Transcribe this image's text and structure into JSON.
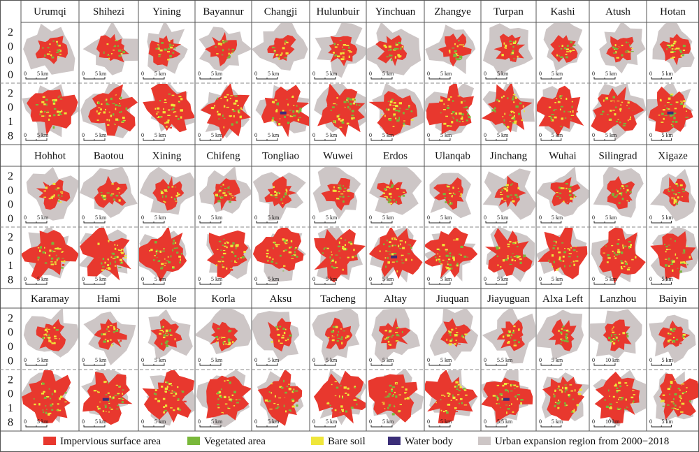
{
  "years": {
    "first": [
      "2",
      "0",
      "0",
      "0"
    ],
    "second": [
      "2",
      "0",
      "1",
      "8"
    ]
  },
  "rows": [
    {
      "cities": [
        {
          "name": "Urumqi",
          "scale": [
            "0",
            "5 km"
          ]
        },
        {
          "name": "Shihezi",
          "scale": [
            "0",
            "5 km"
          ]
        },
        {
          "name": "Yining",
          "scale": [
            "0",
            "5 km"
          ]
        },
        {
          "name": "Bayannur",
          "scale": [
            "0",
            "5 km"
          ]
        },
        {
          "name": "Changji",
          "scale": [
            "0",
            "5 km"
          ]
        },
        {
          "name": "Hulunbuir",
          "scale": [
            "0",
            "5 km"
          ]
        },
        {
          "name": "Yinchuan",
          "scale": [
            "0",
            "5 km"
          ]
        },
        {
          "name": "Zhangye",
          "scale": [
            "0",
            "5 km"
          ]
        },
        {
          "name": "Turpan",
          "scale": [
            "0",
            "5 km"
          ]
        },
        {
          "name": "Kashi",
          "scale": [
            "0",
            "5 km"
          ]
        },
        {
          "name": "Atush",
          "scale": [
            "0",
            "5 km"
          ]
        },
        {
          "name": "Hotan",
          "scale": [
            "0",
            "5 km"
          ]
        }
      ]
    },
    {
      "cities": [
        {
          "name": "Hohhot",
          "scale": [
            "0",
            "5 km"
          ]
        },
        {
          "name": "Baotou",
          "scale": [
            "0",
            "5 km"
          ]
        },
        {
          "name": "Xining",
          "scale": [
            "0",
            "5 km"
          ]
        },
        {
          "name": "Chifeng",
          "scale": [
            "0",
            "5 km"
          ]
        },
        {
          "name": "Tongliao",
          "scale": [
            "0",
            "5 km"
          ]
        },
        {
          "name": "Wuwei",
          "scale": [
            "0",
            "5 km"
          ]
        },
        {
          "name": "Erdos",
          "scale": [
            "0",
            "5 km"
          ]
        },
        {
          "name": "Ulanqab",
          "scale": [
            "0",
            "5 km"
          ]
        },
        {
          "name": "Jinchang",
          "scale": [
            "0",
            "5 km"
          ]
        },
        {
          "name": "Wuhai",
          "scale": [
            "0",
            "5 km"
          ]
        },
        {
          "name": "Silingrad",
          "scale": [
            "0",
            "5 km"
          ]
        },
        {
          "name": "Xigaze",
          "scale": [
            "0",
            "5 km"
          ]
        }
      ]
    },
    {
      "cities": [
        {
          "name": "Karamay",
          "scale": [
            "0",
            "5 km"
          ]
        },
        {
          "name": "Hami",
          "scale": [
            "0",
            "5 km"
          ]
        },
        {
          "name": "Bole",
          "scale": [
            "0",
            "5 km"
          ]
        },
        {
          "name": "Korla",
          "scale": [
            "0",
            "5 km"
          ]
        },
        {
          "name": "Aksu",
          "scale": [
            "0",
            "5 km"
          ]
        },
        {
          "name": "Tacheng",
          "scale": [
            "0",
            "5 km"
          ]
        },
        {
          "name": "Altay",
          "scale": [
            "0",
            "5 km"
          ]
        },
        {
          "name": "Jiuquan",
          "scale": [
            "0",
            "5 km"
          ]
        },
        {
          "name": "Jiayuguan",
          "scale": [
            "0",
            "5.5 km"
          ]
        },
        {
          "name": "Alxa Left",
          "scale": [
            "0",
            "5 km"
          ]
        },
        {
          "name": "Lanzhou",
          "scale": [
            "0",
            "10 km"
          ]
        },
        {
          "name": "Baiyin",
          "scale": [
            "0",
            "5 km"
          ]
        }
      ]
    }
  ],
  "legend": [
    {
      "label": "Impervious surface area",
      "color": "#e8382e",
      "kind": "land"
    },
    {
      "label": "Vegetated area",
      "color": "#79b83a",
      "kind": "land"
    },
    {
      "label": "Bare soil",
      "color": "#efe63a",
      "kind": "land"
    },
    {
      "label": "Water body",
      "color": "#3b2e78",
      "kind": "land"
    },
    {
      "label": "Urban expansion region from 2000−2018",
      "color": "#cdc6c6",
      "kind": "region"
    }
  ],
  "colors": {
    "grid": "#555555",
    "divider": "#888888",
    "text": "#111111"
  }
}
